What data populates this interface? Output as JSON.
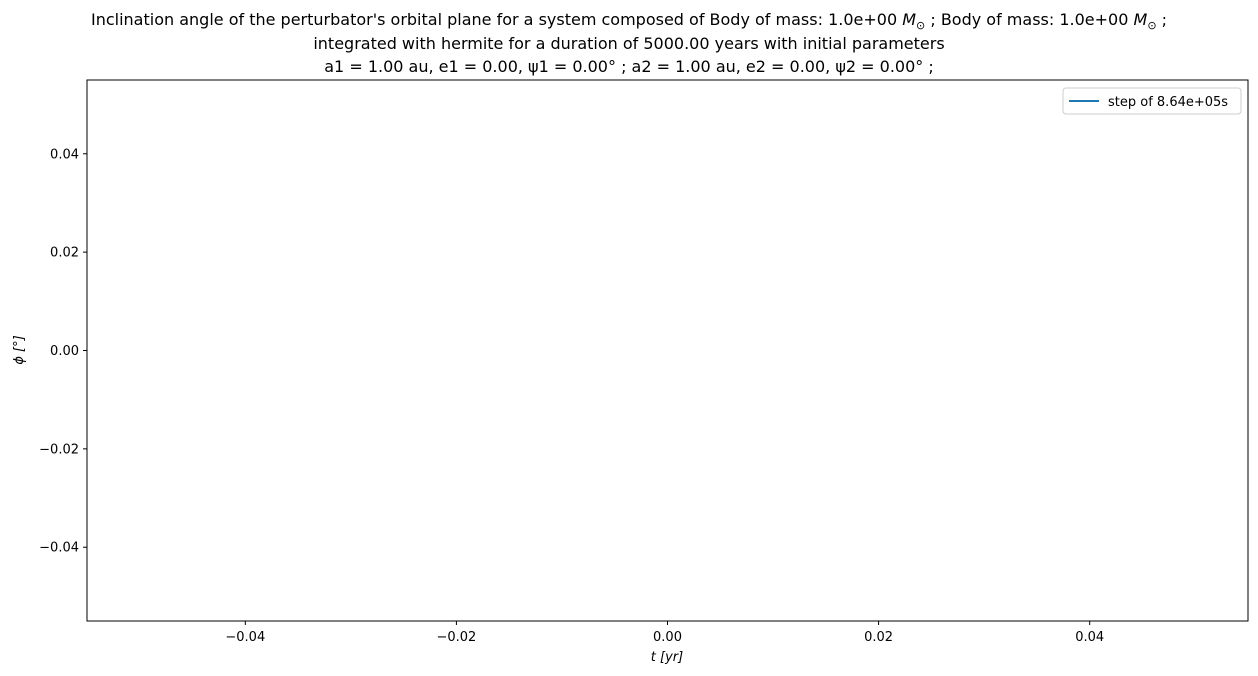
{
  "title": {
    "line1_prefix": "Inclination angle of the perturbator's orbital plane for a system composed of Body of mass: 1.0e+00",
    "line1_mid": "; Body of mass: 1.0e+00",
    "line1_unit": "M",
    "line1_sub": "⊙",
    "line1_end": ";",
    "line2": "integrated with hermite for a duration of 5000.00 years with initial parameters",
    "line3": "a1 = 1.00 au, e1 = 0.00, ψ1 = 0.00° ; a2 = 1.00 au, e2 = 0.00, ψ2 = 0.00° ;"
  },
  "chart_data": {
    "type": "line",
    "xlabel": "t [yr]",
    "ylabel": "ϕ [°]",
    "xlim": [
      -0.055,
      0.055
    ],
    "ylim": [
      -0.055,
      0.055
    ],
    "xticks": [
      -0.04,
      -0.02,
      0.0,
      0.02,
      0.04
    ],
    "xtick_labels": [
      "−0.04",
      "−0.02",
      "0.00",
      "0.02",
      "0.04"
    ],
    "yticks": [
      0.04,
      0.02,
      0.0,
      -0.02,
      -0.04
    ],
    "ytick_labels": [
      "0.04",
      "0.02",
      "0.00",
      "−0.02",
      "−0.04"
    ],
    "grid": false,
    "legend_position": "top-right",
    "series": [
      {
        "name": "step of 8.64e+05s",
        "color": "#1f77b4",
        "x": [],
        "y": []
      }
    ]
  }
}
